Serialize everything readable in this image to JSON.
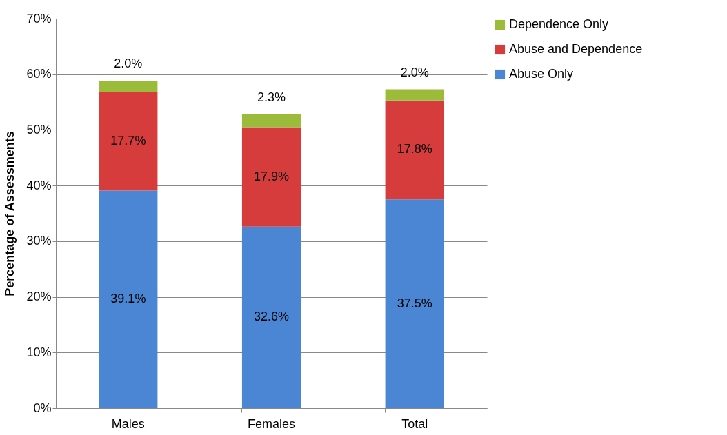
{
  "chart_data": {
    "type": "bar",
    "stacked": true,
    "ylabel": "Percentage of Assessments",
    "categories": [
      "Males",
      "Females",
      "Total"
    ],
    "series": [
      {
        "name": "Abuse Only",
        "color": "#4a86d4",
        "values": [
          39.1,
          32.6,
          37.5
        ],
        "value_labels": [
          "39.1%",
          "32.6%",
          "37.5%"
        ]
      },
      {
        "name": "Abuse and Dependence",
        "color": "#d63c3c",
        "values": [
          17.7,
          17.9,
          17.8
        ],
        "value_labels": [
          "17.7%",
          "17.9%",
          "17.8%"
        ]
      },
      {
        "name": "Dependence Only",
        "color": "#9bbb3b",
        "values": [
          2.0,
          2.3,
          2.0
        ],
        "value_labels": [
          "2.0%",
          "2.3%",
          "2.0%"
        ]
      }
    ],
    "ylim": [
      0,
      70
    ],
    "yticks": [
      {
        "value": 0,
        "label": "0%"
      },
      {
        "value": 10,
        "label": "10%"
      },
      {
        "value": 20,
        "label": "20%"
      },
      {
        "value": 30,
        "label": "30%"
      },
      {
        "value": 40,
        "label": "40%"
      },
      {
        "value": 50,
        "label": "50%"
      },
      {
        "value": 60,
        "label": "60%"
      },
      {
        "value": 70,
        "label": "70%"
      }
    ],
    "grid": "y",
    "legend": "right"
  }
}
